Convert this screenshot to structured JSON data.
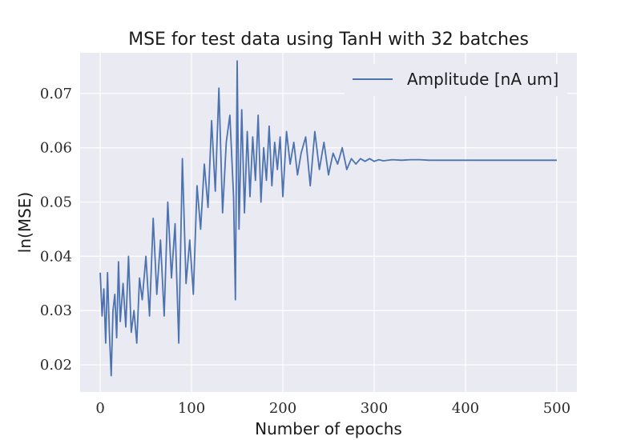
{
  "chart_data": {
    "type": "line",
    "title": "MSE for test data using TanH with 32 batches",
    "xlabel": "Number of epochs",
    "ylabel": "ln(MSE)",
    "xlim": [
      -22,
      522
    ],
    "ylim": [
      0.015,
      0.0775
    ],
    "xticks": [
      0,
      100,
      200,
      300,
      400,
      500
    ],
    "yticks": [
      0.02,
      0.03,
      0.04,
      0.05,
      0.06,
      0.07
    ],
    "xtick_labels": [
      "0",
      "100",
      "200",
      "300",
      "400",
      "500"
    ],
    "ytick_labels": [
      "0.02",
      "0.03",
      "0.04",
      "0.05",
      "0.06",
      "0.07"
    ],
    "grid": true,
    "legend": {
      "position": "top-right"
    },
    "series": [
      {
        "name": "Amplitude [nA um]",
        "color": "#4c72b0",
        "x": [
          0,
          2,
          4,
          6,
          8,
          10,
          12,
          14,
          16,
          18,
          20,
          22,
          25,
          28,
          31,
          34,
          37,
          40,
          43,
          46,
          50,
          54,
          58,
          62,
          66,
          70,
          74,
          78,
          82,
          86,
          90,
          94,
          98,
          102,
          106,
          110,
          114,
          118,
          122,
          126,
          130,
          134,
          138,
          142,
          146,
          148,
          150,
          152,
          155,
          158,
          161,
          164,
          167,
          170,
          173,
          176,
          179,
          182,
          185,
          188,
          191,
          194,
          197,
          200,
          204,
          208,
          212,
          216,
          220,
          225,
          230,
          235,
          240,
          245,
          250,
          255,
          260,
          265,
          270,
          275,
          280,
          285,
          290,
          295,
          300,
          305,
          310,
          320,
          330,
          340,
          350,
          360,
          380,
          400,
          420,
          450,
          480,
          500
        ],
        "y": [
          0.037,
          0.029,
          0.034,
          0.024,
          0.037,
          0.026,
          0.018,
          0.03,
          0.033,
          0.025,
          0.039,
          0.028,
          0.035,
          0.027,
          0.04,
          0.026,
          0.03,
          0.024,
          0.036,
          0.032,
          0.04,
          0.029,
          0.047,
          0.033,
          0.043,
          0.029,
          0.05,
          0.036,
          0.046,
          0.024,
          0.058,
          0.035,
          0.043,
          0.033,
          0.053,
          0.045,
          0.057,
          0.049,
          0.065,
          0.052,
          0.071,
          0.048,
          0.061,
          0.066,
          0.051,
          0.032,
          0.076,
          0.045,
          0.067,
          0.048,
          0.063,
          0.051,
          0.062,
          0.054,
          0.066,
          0.05,
          0.06,
          0.054,
          0.064,
          0.053,
          0.061,
          0.056,
          0.062,
          0.051,
          0.063,
          0.057,
          0.061,
          0.055,
          0.059,
          0.062,
          0.053,
          0.063,
          0.056,
          0.061,
          0.055,
          0.059,
          0.057,
          0.06,
          0.056,
          0.058,
          0.057,
          0.058,
          0.0575,
          0.058,
          0.0575,
          0.0578,
          0.0576,
          0.0578,
          0.0577,
          0.0578,
          0.0578,
          0.0577,
          0.0577,
          0.0577,
          0.0577,
          0.0577,
          0.0577,
          0.0577
        ]
      }
    ]
  }
}
